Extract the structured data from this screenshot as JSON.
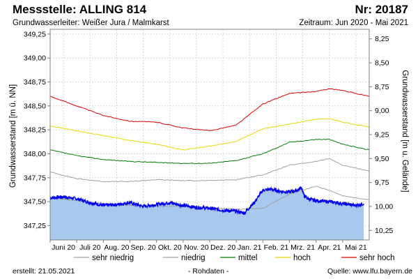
{
  "header": {
    "title": "Messstelle: ALLING 814",
    "station_no": "Nr: 20187",
    "aquifer": "Grundwasserleiter:   Weißer Jura / Malmkarst",
    "period": "Zeitraum: Jun 2020 - Mai 2021"
  },
  "footer": {
    "created": "erstellt:  21.05.2021",
    "note": "- Rohdaten -",
    "source": "Quelle:  www.lfu.bayern.de"
  },
  "chart_data": {
    "type": "line",
    "ylabel": "Grundwasserstand [m ü. NN]",
    "y2label": "Grundwasserstand [m u. Gelände]",
    "ylim": [
      347.1,
      349.3
    ],
    "y2lim": [
      10.35,
      8.15
    ],
    "yticks": [
      347.25,
      347.5,
      347.75,
      348.0,
      348.25,
      348.5,
      348.75,
      349.0,
      349.25
    ],
    "ytick_labels": [
      "347,25",
      "347,50",
      "347,75",
      "348,00",
      "348,25",
      "348,50",
      "348,75",
      "349,00",
      "349,25"
    ],
    "y2ticks": [
      10.25,
      10.0,
      9.75,
      9.5,
      9.25,
      9.0,
      8.75,
      8.5,
      8.25
    ],
    "y2tick_labels": [
      "10,25",
      "10,00",
      "9,75",
      "9,50",
      "9,25",
      "9,00",
      "8,75",
      "8,50",
      "8,25"
    ],
    "xlim": [
      0,
      12
    ],
    "xtick_labels": [
      "Juni 20",
      "Juli 20",
      "Aug. 20",
      "Sep. 20",
      "Okt. 20",
      "Nov. 20",
      "Dez. 20",
      "Jan. 21",
      "Feb. 21",
      "Mrz. 21",
      "Apr. 21",
      "Mai 21"
    ],
    "grid": true,
    "series": [
      {
        "name": "sehr niedrig",
        "color": "#a0a0a0",
        "x": [
          0,
          1,
          2,
          3,
          4,
          5,
          6,
          7,
          8,
          9,
          10,
          10.5,
          11,
          12
        ],
        "values": [
          347.54,
          347.51,
          347.48,
          347.46,
          347.45,
          347.45,
          347.44,
          347.42,
          347.43,
          347.58,
          347.66,
          347.62,
          347.56,
          347.52
        ]
      },
      {
        "name": "niedrig",
        "color": "#a0a0a0",
        "x": [
          0,
          1,
          2,
          3,
          4,
          5,
          6,
          7,
          8,
          9,
          10,
          10.5,
          11,
          12
        ],
        "values": [
          347.81,
          347.74,
          347.71,
          347.71,
          347.73,
          347.72,
          347.72,
          347.73,
          347.78,
          347.88,
          347.92,
          347.95,
          347.88,
          347.82
        ]
      },
      {
        "name": "mittel",
        "color": "#008000",
        "x": [
          0,
          1,
          2,
          3,
          4,
          5,
          6,
          7,
          8,
          9,
          10,
          10.5,
          11,
          12
        ],
        "values": [
          348.04,
          347.98,
          347.94,
          347.92,
          347.91,
          347.9,
          347.9,
          347.93,
          348.0,
          348.12,
          348.15,
          348.15,
          348.1,
          348.04
        ]
      },
      {
        "name": "hoch",
        "color": "#e8d800",
        "x": [
          0,
          1,
          2,
          3,
          4,
          5,
          6,
          7,
          8,
          9,
          10,
          10.5,
          11,
          12
        ],
        "values": [
          348.29,
          348.24,
          348.19,
          348.14,
          348.1,
          348.04,
          348.08,
          348.13,
          348.26,
          348.31,
          348.36,
          348.37,
          348.33,
          348.28
        ]
      },
      {
        "name": "sehr hoch",
        "color": "#e00000",
        "x": [
          0,
          1,
          2,
          3,
          4,
          5,
          6,
          7,
          8,
          9,
          10,
          10.5,
          11,
          12
        ],
        "values": [
          348.6,
          348.5,
          348.4,
          348.34,
          348.33,
          348.27,
          348.24,
          348.3,
          348.52,
          348.63,
          348.65,
          348.68,
          348.66,
          348.6
        ]
      },
      {
        "name": "",
        "color": "#0000ee",
        "fill": "#a8c8ee",
        "x": [
          0,
          0.5,
          1,
          1.5,
          2,
          2.5,
          3,
          3.5,
          4,
          4.5,
          5,
          5.5,
          6,
          6.5,
          7,
          7.3,
          7.7,
          8,
          8.3,
          8.6,
          9,
          9.3,
          9.45,
          9.55,
          9.7,
          10,
          10.5,
          11,
          11.5,
          11.8
        ],
        "values": [
          347.54,
          347.55,
          347.53,
          347.49,
          347.46,
          347.47,
          347.49,
          347.45,
          347.47,
          347.49,
          347.46,
          347.44,
          347.43,
          347.41,
          347.4,
          347.38,
          347.5,
          347.62,
          347.63,
          347.61,
          347.6,
          347.62,
          347.65,
          347.56,
          347.53,
          347.51,
          347.5,
          347.48,
          347.46,
          347.48
        ]
      }
    ]
  }
}
